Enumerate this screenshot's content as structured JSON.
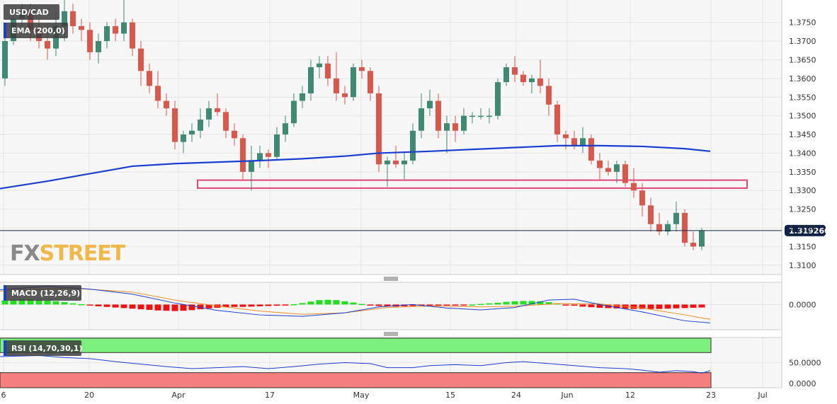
{
  "symbol": "USD/CAD",
  "ema_label": "EMA (200,0)",
  "macd_label": "MACD (12,26,9)",
  "rsi_label": "RSI (14,70,30,1)",
  "last_price": "1.319260",
  "watermark_fx": "FX",
  "watermark_street": "STREET",
  "colors": {
    "up": "#3f8a72",
    "down": "#d9574b",
    "ema": "#1a3fcf",
    "zone": "#e0457a",
    "macd_line": "#1a3fcf",
    "signal_line": "#f08a24",
    "hist_pos": "#22e01f",
    "hist_neg": "#ee1111",
    "rsi_line": "#1a3fcf",
    "overbought_fill": "#7cf07c",
    "oversold_fill": "#f58080",
    "price_tag": "#0e2347"
  },
  "chart_data": [
    {
      "type": "candlestick",
      "title": "USD/CAD",
      "ylim": [
        1.3075,
        1.381
      ],
      "y_ticks": [
        "1.3100",
        "1.3150",
        "1.3200",
        "1.3250",
        "1.3300",
        "1.3350",
        "1.3400",
        "1.3450",
        "1.3500",
        "1.3550",
        "1.3600",
        "1.3650",
        "1.3700",
        "1.3750"
      ],
      "x_ticks": [
        "6",
        "20",
        "Apr",
        "17",
        "May",
        "15",
        "24",
        "Jun",
        "12",
        "23",
        "Jul"
      ],
      "candles": [
        [
          1.36,
          1.372,
          1.358,
          1.37
        ],
        [
          1.37,
          1.378,
          1.369,
          1.376
        ],
        [
          1.376,
          1.38,
          1.372,
          1.378
        ],
        [
          1.378,
          1.38,
          1.37,
          1.373
        ],
        [
          1.373,
          1.376,
          1.368,
          1.37
        ],
        [
          1.37,
          1.374,
          1.365,
          1.368
        ],
        [
          1.368,
          1.378,
          1.366,
          1.374
        ],
        [
          1.374,
          1.381,
          1.37,
          1.378
        ],
        [
          1.378,
          1.38,
          1.372,
          1.374
        ],
        [
          1.374,
          1.376,
          1.37,
          1.373
        ],
        [
          1.373,
          1.375,
          1.365,
          1.367
        ],
        [
          1.367,
          1.372,
          1.364,
          1.37
        ],
        [
          1.37,
          1.375,
          1.368,
          1.374
        ],
        [
          1.374,
          1.376,
          1.37,
          1.372
        ],
        [
          1.372,
          1.382,
          1.37,
          1.375
        ],
        [
          1.375,
          1.376,
          1.366,
          1.368
        ],
        [
          1.368,
          1.37,
          1.358,
          1.362
        ],
        [
          1.362,
          1.364,
          1.356,
          1.358
        ],
        [
          1.358,
          1.362,
          1.352,
          1.354
        ],
        [
          1.354,
          1.356,
          1.35,
          1.352
        ],
        [
          1.352,
          1.354,
          1.341,
          1.343
        ],
        [
          1.343,
          1.346,
          1.34,
          1.345
        ],
        [
          1.345,
          1.348,
          1.343,
          1.346
        ],
        [
          1.346,
          1.352,
          1.344,
          1.349
        ],
        [
          1.349,
          1.354,
          1.347,
          1.352
        ],
        [
          1.352,
          1.356,
          1.35,
          1.351
        ],
        [
          1.351,
          1.352,
          1.344,
          1.346
        ],
        [
          1.346,
          1.348,
          1.342,
          1.344
        ],
        [
          1.344,
          1.345,
          1.333,
          1.335
        ],
        [
          1.335,
          1.342,
          1.33,
          1.338
        ],
        [
          1.338,
          1.342,
          1.336,
          1.34
        ],
        [
          1.34,
          1.341,
          1.336,
          1.339
        ],
        [
          1.339,
          1.347,
          1.338,
          1.345
        ],
        [
          1.345,
          1.35,
          1.343,
          1.348
        ],
        [
          1.348,
          1.356,
          1.347,
          1.354
        ],
        [
          1.354,
          1.358,
          1.352,
          1.356
        ],
        [
          1.356,
          1.365,
          1.354,
          1.363
        ],
        [
          1.363,
          1.366,
          1.36,
          1.364
        ],
        [
          1.364,
          1.366,
          1.358,
          1.36
        ],
        [
          1.36,
          1.367,
          1.354,
          1.356
        ],
        [
          1.356,
          1.358,
          1.353,
          1.355
        ],
        [
          1.355,
          1.364,
          1.354,
          1.363
        ],
        [
          1.363,
          1.365,
          1.36,
          1.362
        ],
        [
          1.362,
          1.363,
          1.354,
          1.356
        ],
        [
          1.356,
          1.358,
          1.335,
          1.337
        ],
        [
          1.337,
          1.339,
          1.331,
          1.338
        ],
        [
          1.338,
          1.342,
          1.336,
          1.337
        ],
        [
          1.337,
          1.34,
          1.333,
          1.338
        ],
        [
          1.338,
          1.348,
          1.337,
          1.346
        ],
        [
          1.346,
          1.356,
          1.344,
          1.352
        ],
        [
          1.352,
          1.357,
          1.35,
          1.354
        ],
        [
          1.354,
          1.356,
          1.344,
          1.346
        ],
        [
          1.346,
          1.35,
          1.34,
          1.348
        ],
        [
          1.348,
          1.35,
          1.343,
          1.346
        ],
        [
          1.346,
          1.352,
          1.345,
          1.35
        ],
        [
          1.35,
          1.351,
          1.348,
          1.35
        ],
        [
          1.35,
          1.352,
          1.349,
          1.35
        ],
        [
          1.35,
          1.352,
          1.348,
          1.35
        ],
        [
          1.35,
          1.36,
          1.349,
          1.359
        ],
        [
          1.359,
          1.364,
          1.358,
          1.363
        ],
        [
          1.363,
          1.366,
          1.359,
          1.361
        ],
        [
          1.361,
          1.362,
          1.358,
          1.359
        ],
        [
          1.359,
          1.361,
          1.356,
          1.36
        ],
        [
          1.36,
          1.365,
          1.356,
          1.358
        ],
        [
          1.358,
          1.36,
          1.35,
          1.353
        ],
        [
          1.353,
          1.354,
          1.343,
          1.345
        ],
        [
          1.345,
          1.346,
          1.341,
          1.344
        ],
        [
          1.344,
          1.346,
          1.341,
          1.342
        ],
        [
          1.342,
          1.347,
          1.34,
          1.344
        ],
        [
          1.344,
          1.345,
          1.337,
          1.338
        ],
        [
          1.338,
          1.34,
          1.333,
          1.336
        ],
        [
          1.336,
          1.338,
          1.334,
          1.335
        ],
        [
          1.335,
          1.338,
          1.332,
          1.337
        ],
        [
          1.337,
          1.338,
          1.331,
          1.332
        ],
        [
          1.332,
          1.336,
          1.328,
          1.33
        ],
        [
          1.33,
          1.332,
          1.323,
          1.326
        ],
        [
          1.326,
          1.328,
          1.319,
          1.321
        ],
        [
          1.321,
          1.324,
          1.318,
          1.319
        ],
        [
          1.319,
          1.322,
          1.318,
          1.321
        ],
        [
          1.321,
          1.327,
          1.319,
          1.324
        ],
        [
          1.324,
          1.325,
          1.315,
          1.316
        ],
        [
          1.316,
          1.319,
          1.314,
          1.315
        ],
        [
          1.315,
          1.32,
          1.314,
          1.3193
        ]
      ],
      "ema_200": [
        [
          1,
          1.3305
        ],
        [
          5,
          1.3325
        ],
        [
          10,
          1.3345
        ],
        [
          15,
          1.3365
        ],
        [
          20,
          1.3372
        ],
        [
          25,
          1.3376
        ],
        [
          30,
          1.338
        ],
        [
          35,
          1.3385
        ],
        [
          40,
          1.3392
        ],
        [
          44,
          1.34
        ],
        [
          50,
          1.3405
        ],
        [
          55,
          1.341
        ],
        [
          60,
          1.3415
        ],
        [
          65,
          1.342
        ],
        [
          70,
          1.342
        ],
        [
          75,
          1.3418
        ],
        [
          80,
          1.3412
        ],
        [
          83,
          1.3405
        ]
      ],
      "support_zone": [
        1.3312,
        1.3322
      ],
      "last_price": 1.31926
    },
    {
      "type": "line",
      "title": "MACD (12,26,9)",
      "y_ticks": [
        "0.0000"
      ],
      "ylim": [
        -0.0085,
        0.0075
      ],
      "histogram": [
        0.0014,
        0.0016,
        0.0017,
        0.0017,
        0.0016,
        0.0014,
        0.0011,
        0.0008,
        0.0004,
        0.0001,
        -0.0003,
        -0.0006,
        -0.0008,
        -0.001,
        -0.0012,
        -0.0014,
        -0.0016,
        -0.0018,
        -0.002,
        -0.0021,
        -0.0022,
        -0.0021,
        -0.0019,
        -0.0016,
        -0.0013,
        -0.0011,
        -0.0009,
        -0.0008,
        -0.0008,
        -0.0007,
        -0.0006,
        -0.0005,
        -0.0004,
        -0.0002,
        0.0001,
        0.0005,
        0.001,
        0.0015,
        0.0016,
        0.0015,
        0.0011,
        0.0007,
        0.0002,
        -0.0002,
        -0.0005,
        -0.0006,
        -0.0007,
        -0.0006,
        -0.0005,
        -0.0004,
        -0.0003,
        -0.0003,
        -0.0003,
        -0.0002,
        -0.0001,
        0.0,
        0.0002,
        0.0004,
        0.0006,
        0.0009,
        0.0011,
        0.0012,
        0.0012,
        0.0011,
        0.0008,
        0.0004,
        -0.0001,
        -0.0004,
        -0.0007,
        -0.0009,
        -0.0011,
        -0.0012,
        -0.0013,
        -0.0014,
        -0.0015,
        -0.0015,
        -0.0015,
        -0.0015,
        -0.0014,
        -0.0013,
        -0.0012,
        -0.0011,
        -0.001
      ],
      "macd": [
        [
          1,
          0.005
        ],
        [
          5,
          0.0062
        ],
        [
          10,
          0.0052
        ],
        [
          15,
          0.0035
        ],
        [
          20,
          0.0005
        ],
        [
          25,
          -0.002
        ],
        [
          30,
          -0.0035
        ],
        [
          35,
          -0.004
        ],
        [
          40,
          -0.0028
        ],
        [
          44,
          -0.0008
        ],
        [
          48,
          0.0
        ],
        [
          52,
          -0.0012
        ],
        [
          56,
          -0.0018
        ],
        [
          60,
          -0.001
        ],
        [
          64,
          0.0015
        ],
        [
          67,
          0.0018
        ],
        [
          70,
          0.0
        ],
        [
          75,
          -0.0025
        ],
        [
          80,
          -0.0055
        ],
        [
          83,
          -0.0062
        ]
      ],
      "signal": [
        [
          1,
          0.0045
        ],
        [
          8,
          0.0055
        ],
        [
          15,
          0.0042
        ],
        [
          20,
          0.0015
        ],
        [
          25,
          -0.0005
        ],
        [
          30,
          -0.0022
        ],
        [
          35,
          -0.0033
        ],
        [
          40,
          -0.0028
        ],
        [
          45,
          -0.001
        ],
        [
          50,
          -0.0005
        ],
        [
          56,
          -0.0008
        ],
        [
          60,
          -0.0006
        ],
        [
          65,
          0.0003
        ],
        [
          70,
          0.0002
        ],
        [
          75,
          -0.0012
        ],
        [
          80,
          -0.0035
        ],
        [
          83,
          -0.005
        ]
      ]
    },
    {
      "type": "line",
      "title": "RSI (14,70,30,1)",
      "y_ticks": [
        "50.0000",
        "0.0000"
      ],
      "ylim": [
        0,
        100
      ],
      "overbought": 70,
      "oversold": 30,
      "rsi": [
        [
          1,
          62
        ],
        [
          4,
          64
        ],
        [
          7,
          60
        ],
        [
          10,
          58
        ],
        [
          13,
          52
        ],
        [
          16,
          47
        ],
        [
          19,
          42
        ],
        [
          22,
          38
        ],
        [
          25,
          40
        ],
        [
          28,
          42
        ],
        [
          31,
          38
        ],
        [
          34,
          42
        ],
        [
          37,
          47
        ],
        [
          40,
          50
        ],
        [
          43,
          48
        ],
        [
          45,
          40
        ],
        [
          48,
          40
        ],
        [
          50,
          44
        ],
        [
          53,
          46
        ],
        [
          56,
          44
        ],
        [
          59,
          50
        ],
        [
          61,
          52
        ],
        [
          64,
          48
        ],
        [
          67,
          44
        ],
        [
          70,
          40
        ],
        [
          73,
          38
        ],
        [
          75,
          35
        ],
        [
          77,
          31
        ],
        [
          79,
          34
        ],
        [
          81,
          32
        ],
        [
          82,
          29
        ],
        [
          83,
          34
        ]
      ]
    }
  ]
}
